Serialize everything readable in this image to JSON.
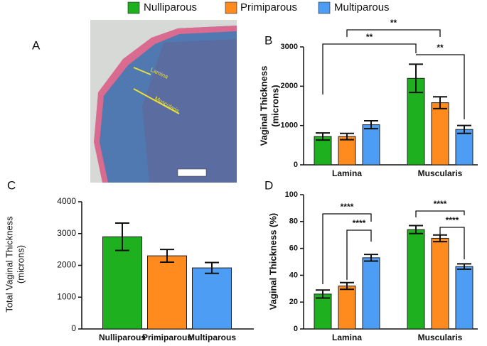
{
  "image_panel": {
    "label": "A",
    "annotations": [
      "Lamina",
      "Muscularis"
    ]
  },
  "chart_data": [
    {
      "type": "bar",
      "label": "B",
      "ylabel": [
        "Vaginal Thickness",
        "(microns)"
      ],
      "categories": [
        "Lamina",
        "Muscularis"
      ],
      "series": [
        {
          "name": "Nulliparous",
          "color": "#1fb01f",
          "values": [
            720,
            2200
          ],
          "errors": [
            90,
            360
          ]
        },
        {
          "name": "Primiparous",
          "color": "#ff8a1e",
          "values": [
            720,
            1580
          ],
          "errors": [
            80,
            150
          ]
        },
        {
          "name": "Multiparous",
          "color": "#4e9df4",
          "values": [
            1020,
            900
          ],
          "errors": [
            100,
            100
          ]
        }
      ],
      "ylim": [
        0,
        3000
      ],
      "yticks": [
        0,
        1000,
        2000,
        3000
      ],
      "annotations": [
        "**",
        "**",
        "**"
      ]
    },
    {
      "type": "bar",
      "label": "C",
      "ylabel": [
        "Total Vaginal Thickness",
        "(microns)"
      ],
      "categories": [
        "Nulliparous",
        "Primiparous",
        "Multiparous"
      ],
      "values": [
        2900,
        2300,
        1920
      ],
      "errors": [
        430,
        200,
        170
      ],
      "colors": [
        "#1fb01f",
        "#ff8a1e",
        "#4e9df4"
      ],
      "ylim": [
        0,
        4000
      ],
      "yticks": [
        0,
        1000,
        2000,
        3000,
        4000
      ]
    },
    {
      "type": "bar",
      "label": "D",
      "ylabel": [
        "Vaginal Thickness (%)"
      ],
      "categories": [
        "Lamina",
        "Muscularis"
      ],
      "series": [
        {
          "name": "Nulliparous",
          "color": "#1fb01f",
          "values": [
            26,
            74
          ],
          "errors": [
            3,
            3
          ]
        },
        {
          "name": "Primiparous",
          "color": "#ff8a1e",
          "values": [
            32,
            67.5
          ],
          "errors": [
            2.5,
            2.5
          ]
        },
        {
          "name": "Multiparous",
          "color": "#4e9df4",
          "values": [
            53,
            46.5
          ],
          "errors": [
            2.5,
            2
          ]
        }
      ],
      "ylim": [
        0,
        100
      ],
      "yticks": [
        0,
        20,
        40,
        60,
        80,
        100
      ],
      "annotations": [
        "****",
        "****",
        "****",
        "****"
      ]
    }
  ]
}
